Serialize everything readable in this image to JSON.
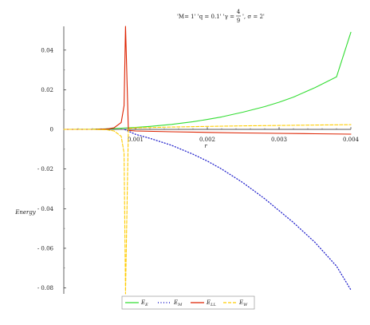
{
  "chart_data": {
    "type": "line",
    "title": "'M= 1' 'q = 0.1' 'γ = 4/9', σ = 2'",
    "title_parts": {
      "pre": "'M= 1' 'q = 0.1' 'γ = ",
      "frac_num": "4",
      "frac_den": "9",
      "post": "', σ = 2'"
    },
    "xlabel": "r",
    "ylabel": "Energy",
    "xlim": [
      0,
      0.004
    ],
    "ylim": [
      -0.083,
      0.052
    ],
    "x_ticks": [
      {
        "value": 0.001,
        "label": "0.001"
      },
      {
        "value": 0.002,
        "label": "0.002"
      },
      {
        "value": 0.003,
        "label": "0.003"
      },
      {
        "value": 0.004,
        "label": "0.004"
      }
    ],
    "y_ticks": [
      {
        "value": 0.04,
        "label": "0.04"
      },
      {
        "value": 0.02,
        "label": "0.02"
      },
      {
        "value": 0,
        "label": "0"
      },
      {
        "value": -0.02,
        "label": "- 0.02"
      },
      {
        "value": -0.04,
        "label": "- 0.04"
      },
      {
        "value": -0.06,
        "label": "- 0.06"
      },
      {
        "value": -0.08,
        "label": "- 0.08"
      }
    ],
    "legend_position": "bottom",
    "series": [
      {
        "name": "E",
        "sub": "E",
        "color": "#33dd33",
        "style": "solid",
        "x": [
          0,
          0.0004,
          0.0006,
          0.0008,
          0.001,
          0.0012,
          0.0015,
          0.0018,
          0.002,
          0.0022,
          0.0025,
          0.0028,
          0.003,
          0.0032,
          0.0035,
          0.0038,
          0.004
        ],
        "y": [
          0,
          0.0001,
          0.0003,
          0.0006,
          0.001,
          0.0015,
          0.0025,
          0.0039,
          0.005,
          0.0063,
          0.0087,
          0.0115,
          0.0137,
          0.0163,
          0.0211,
          0.0265,
          0.049
        ]
      },
      {
        "name": "E",
        "sub": "M",
        "color": "#2222cc",
        "style": "dotted",
        "x": [
          0.00085,
          0.001,
          0.0012,
          0.0015,
          0.0018,
          0.002,
          0.0022,
          0.0025,
          0.0028,
          0.003,
          0.0032,
          0.0035,
          0.0038,
          0.004
        ],
        "y": [
          -0.0001,
          -0.0025,
          -0.0045,
          -0.008,
          -0.0125,
          -0.016,
          -0.02,
          -0.027,
          -0.035,
          -0.041,
          -0.047,
          -0.057,
          -0.069,
          -0.081
        ]
      },
      {
        "name": "E",
        "sub": "LL",
        "color": "#dd2200",
        "style": "solid",
        "x": [
          0,
          0.0004,
          0.0006,
          0.0007,
          0.0008,
          0.00084,
          0.00086,
          0.0009,
          0.001,
          0.0015,
          0.002,
          0.0025,
          0.003,
          0.0035,
          0.004
        ],
        "y": [
          0,
          0,
          0.0002,
          0.0008,
          0.0035,
          0.012,
          0.052,
          -0.0005,
          -0.0008,
          -0.0012,
          -0.0015,
          -0.0018,
          -0.002,
          -0.0022,
          -0.0024
        ]
      },
      {
        "name": "E",
        "sub": "W",
        "color": "#ffcc00",
        "style": "dashed",
        "x": [
          0,
          0.0004,
          0.0006,
          0.0007,
          0.0008,
          0.00084,
          0.00086,
          0.0009,
          0.001,
          0.0015,
          0.002,
          0.0025,
          0.003,
          0.0035,
          0.004
        ],
        "y": [
          0,
          0,
          -0.0002,
          -0.0008,
          -0.0035,
          -0.012,
          -0.083,
          0.0005,
          0.0008,
          0.0012,
          0.0015,
          0.0018,
          0.002,
          0.0022,
          0.0024
        ]
      }
    ]
  }
}
